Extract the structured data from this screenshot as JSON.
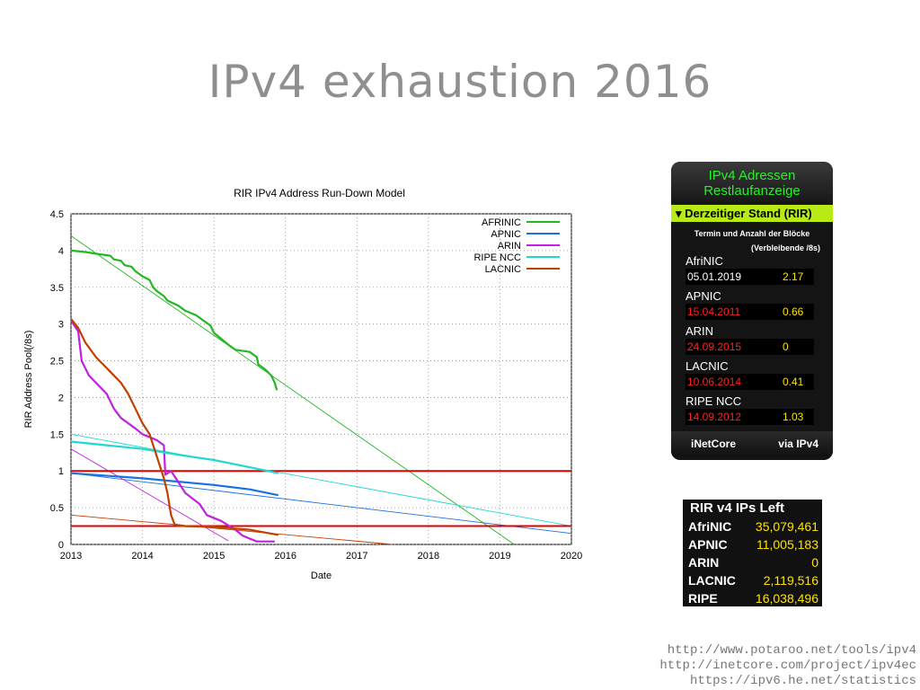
{
  "slide": {
    "title": "IPv4 exhaustion 2016"
  },
  "chart_data": {
    "type": "line",
    "title": "RIR IPv4 Address Run-Down Model",
    "xlabel": "Date",
    "ylabel": "RIR Address Pool(/8s)",
    "xlim": [
      2013,
      2020
    ],
    "ylim": [
      0,
      4.5
    ],
    "x_ticks": [
      "2013",
      "2014",
      "2015",
      "2016",
      "2017",
      "2018",
      "2019",
      "2020"
    ],
    "y_ticks": [
      "0",
      "0.5",
      "1",
      "1.5",
      "2",
      "2.5",
      "3",
      "3.5",
      "4",
      "4.5"
    ],
    "grid": true,
    "legend": "top-right",
    "series": [
      {
        "name": "AFRINIC",
        "color": "#22b822",
        "points": [
          [
            2013,
            4.0
          ],
          [
            2013.2,
            3.98
          ],
          [
            2013.4,
            3.95
          ],
          [
            2013.55,
            3.93
          ],
          [
            2013.6,
            3.88
          ],
          [
            2013.7,
            3.86
          ],
          [
            2013.75,
            3.8
          ],
          [
            2013.85,
            3.78
          ],
          [
            2013.9,
            3.72
          ],
          [
            2014.0,
            3.65
          ],
          [
            2014.1,
            3.6
          ],
          [
            2014.15,
            3.5
          ],
          [
            2014.2,
            3.45
          ],
          [
            2014.3,
            3.38
          ],
          [
            2014.35,
            3.32
          ],
          [
            2014.5,
            3.25
          ],
          [
            2014.6,
            3.18
          ],
          [
            2014.75,
            3.12
          ],
          [
            2014.85,
            3.05
          ],
          [
            2014.95,
            2.98
          ],
          [
            2015.0,
            2.88
          ],
          [
            2015.1,
            2.8
          ],
          [
            2015.2,
            2.72
          ],
          [
            2015.3,
            2.65
          ],
          [
            2015.5,
            2.62
          ],
          [
            2015.6,
            2.55
          ],
          [
            2015.62,
            2.45
          ],
          [
            2015.72,
            2.38
          ],
          [
            2015.8,
            2.3
          ],
          [
            2015.85,
            2.2
          ],
          [
            2015.88,
            2.1
          ]
        ]
      },
      {
        "name": "APNIC",
        "color": "#1a72e0",
        "points": [
          [
            2013,
            0.97
          ],
          [
            2014,
            0.9
          ],
          [
            2015,
            0.81
          ],
          [
            2015.5,
            0.75
          ],
          [
            2015.9,
            0.67
          ]
        ]
      },
      {
        "name": "ARIN",
        "color": "#c020e0",
        "points": [
          [
            2013,
            3.05
          ],
          [
            2013.1,
            2.9
          ],
          [
            2013.15,
            2.5
          ],
          [
            2013.25,
            2.3
          ],
          [
            2013.4,
            2.15
          ],
          [
            2013.5,
            2.05
          ],
          [
            2013.6,
            1.85
          ],
          [
            2013.7,
            1.72
          ],
          [
            2013.8,
            1.65
          ],
          [
            2013.9,
            1.58
          ],
          [
            2014.0,
            1.5
          ],
          [
            2014.2,
            1.42
          ],
          [
            2014.3,
            1.35
          ],
          [
            2014.32,
            0.95
          ],
          [
            2014.4,
            1.0
          ],
          [
            2014.5,
            0.85
          ],
          [
            2014.6,
            0.7
          ],
          [
            2014.8,
            0.55
          ],
          [
            2014.9,
            0.4
          ],
          [
            2015.1,
            0.32
          ],
          [
            2015.3,
            0.2
          ],
          [
            2015.4,
            0.12
          ],
          [
            2015.5,
            0.08
          ],
          [
            2015.6,
            0.04
          ],
          [
            2015.7,
            0.04
          ],
          [
            2015.85,
            0.04
          ]
        ]
      },
      {
        "name": "RIPE NCC",
        "color": "#20d8d0",
        "points": [
          [
            2013,
            1.4
          ],
          [
            2013.5,
            1.35
          ],
          [
            2014,
            1.3
          ],
          [
            2014.5,
            1.22
          ],
          [
            2015,
            1.15
          ],
          [
            2015.5,
            1.05
          ],
          [
            2015.9,
            0.97
          ]
        ]
      },
      {
        "name": "LACNIC",
        "color": "#c04000",
        "points": [
          [
            2013,
            3.07
          ],
          [
            2013.1,
            2.95
          ],
          [
            2013.2,
            2.75
          ],
          [
            2013.35,
            2.55
          ],
          [
            2013.45,
            2.45
          ],
          [
            2013.55,
            2.35
          ],
          [
            2013.7,
            2.2
          ],
          [
            2013.8,
            2.05
          ],
          [
            2013.9,
            1.85
          ],
          [
            2014.0,
            1.65
          ],
          [
            2014.1,
            1.5
          ],
          [
            2014.2,
            1.2
          ],
          [
            2014.3,
            0.9
          ],
          [
            2014.35,
            0.7
          ],
          [
            2014.4,
            0.4
          ],
          [
            2014.45,
            0.27
          ],
          [
            2014.6,
            0.25
          ],
          [
            2015.0,
            0.24
          ],
          [
            2015.5,
            0.2
          ],
          [
            2015.9,
            0.13
          ]
        ]
      }
    ],
    "trend_lines": [
      {
        "name": "AFRINIC trend",
        "color": "#22b822",
        "from": [
          2013,
          4.2
        ],
        "to": [
          2019.2,
          0
        ]
      },
      {
        "name": "APNIC trend",
        "color": "#1a72e0",
        "from": [
          2013,
          0.97
        ],
        "to": [
          2020,
          0.15
        ]
      },
      {
        "name": "ARIN trend",
        "color": "#c020e0",
        "from": [
          2013,
          1.3
        ],
        "to": [
          2015.2,
          0.05
        ]
      },
      {
        "name": "RIPE NCC trend",
        "color": "#20d8d0",
        "from": [
          2013,
          1.5
        ],
        "to": [
          2020,
          0.25
        ]
      },
      {
        "name": "LACNIC trend",
        "color": "#c04000",
        "from": [
          2013,
          0.4
        ],
        "to": [
          2017.5,
          0
        ]
      }
    ],
    "reference_lines": [
      {
        "y": 1.0,
        "color": "#dd0000"
      },
      {
        "y": 0.25,
        "color": "#dd0000"
      }
    ]
  },
  "widget_remaining": {
    "title_line1": "IPv4 Adressen",
    "title_line2": "Restlaufanzeige",
    "status_bar": "▾ Derzeitiger Stand (RIR)",
    "subtitle": "Termin und Anzahl der Blöcke",
    "subtitle2": "(Verbleibende /8s)",
    "rows": [
      {
        "name": "AfriNIC",
        "date": "05.01.2019",
        "value": "2.17",
        "date_color": "#ffffff"
      },
      {
        "name": "APNIC",
        "date": "15.04.2011",
        "value": "0.66",
        "date_color": "#ff2020"
      },
      {
        "name": "ARIN",
        "date": "24.09.2015",
        "value": "0",
        "date_color": "#ff2020"
      },
      {
        "name": "LACNIC",
        "date": "10.06.2014",
        "value": "0.41",
        "date_color": "#ff2020"
      },
      {
        "name": "RIPE NCC",
        "date": "14.09.2012",
        "value": "1.03",
        "date_color": "#ff2020"
      }
    ],
    "brand": "iNetCore",
    "via": "via IPv4"
  },
  "widget_ips_left": {
    "title": "RIR v4 IPs Left",
    "rows": [
      {
        "name": "AfriNIC",
        "value": "35,079,461"
      },
      {
        "name": "APNIC",
        "value": "11,005,183"
      },
      {
        "name": "ARIN",
        "value": "0"
      },
      {
        "name": "LACNIC",
        "value": "2,119,516"
      },
      {
        "name": "RIPE",
        "value": "16,038,496"
      }
    ]
  },
  "links": [
    "http://www.potaroo.net/tools/ipv4",
    "http://inetcore.com/project/ipv4ec",
    "https://ipv6.he.net/statistics"
  ]
}
